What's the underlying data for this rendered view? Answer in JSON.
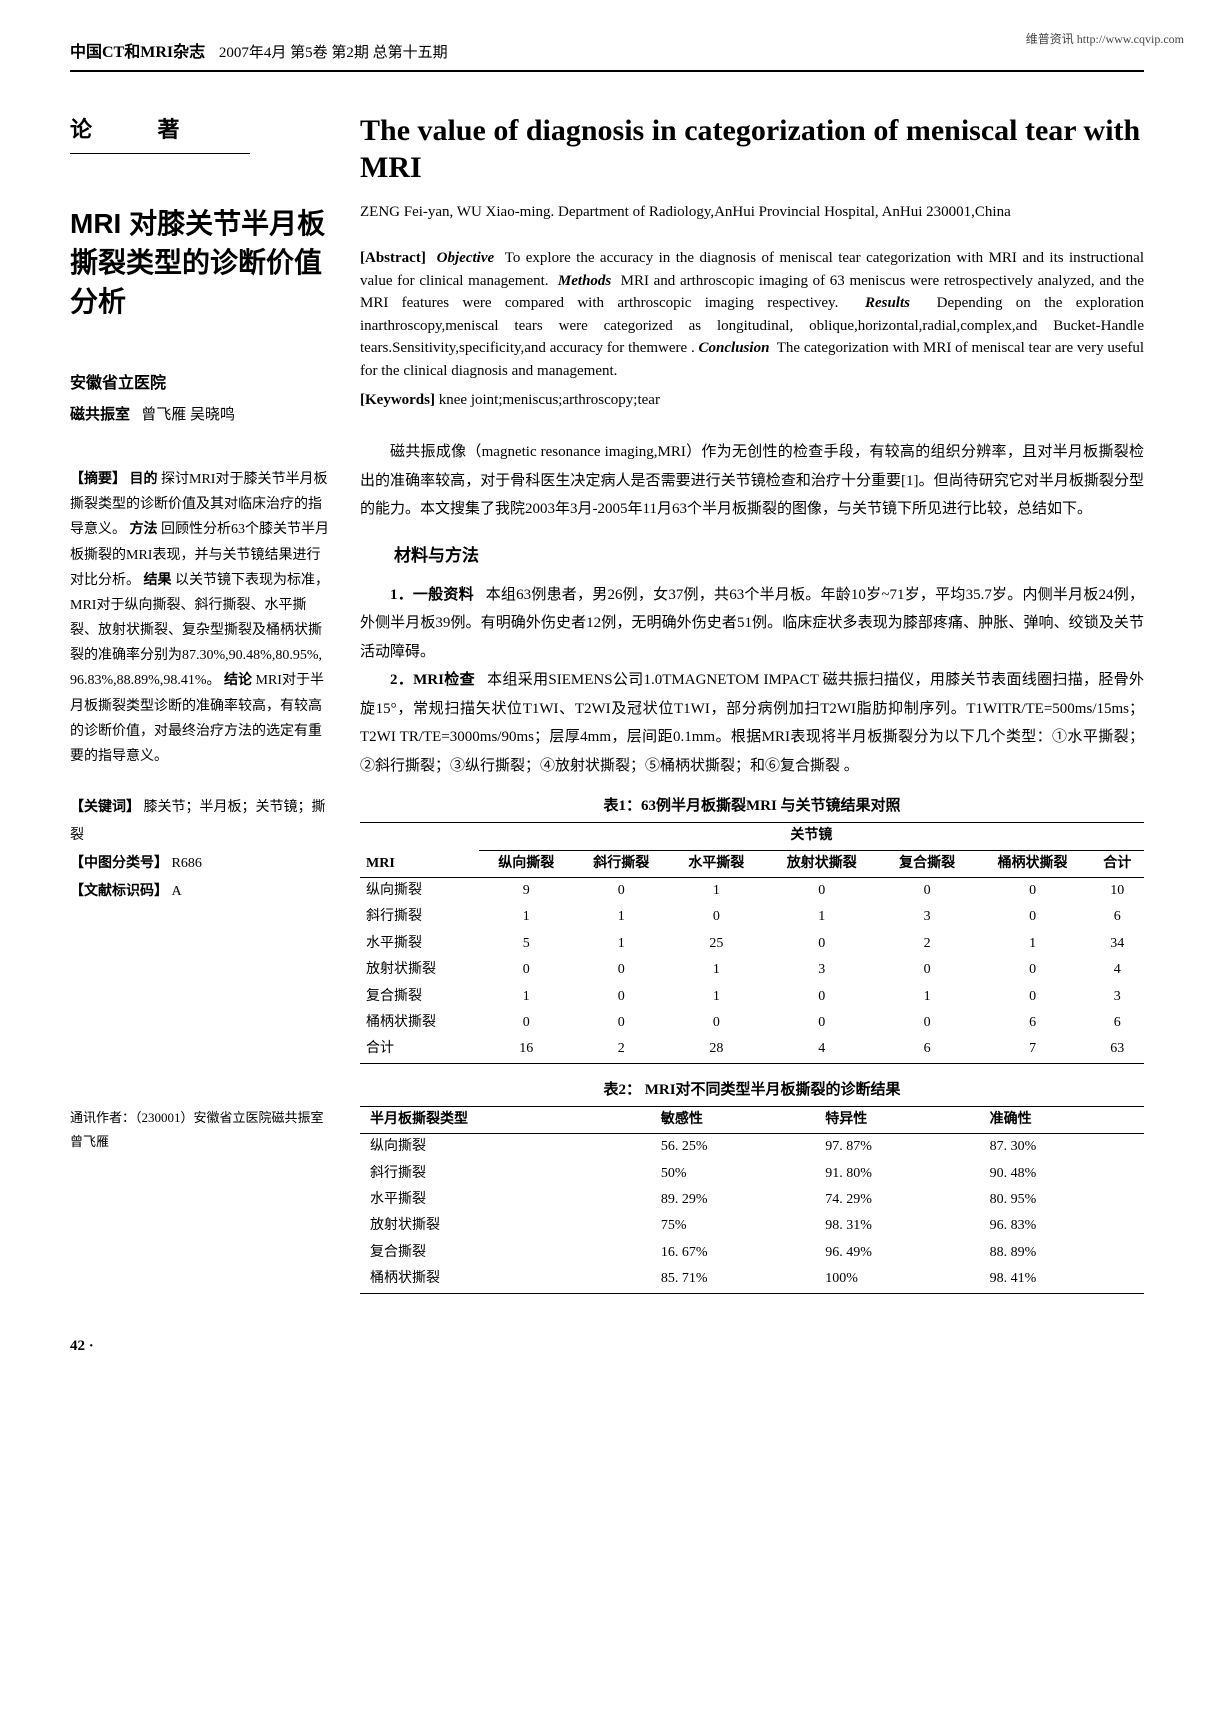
{
  "watermark": "维普资讯 http://www.cqvip.com",
  "journal": {
    "name": "中国CT和MRI杂志",
    "issue": "2007年4月 第5卷 第2期 总第十五期"
  },
  "sectionLabel": "论  著",
  "cnTitle": "MRI 对膝关节半月板撕裂类型的诊断价值分析",
  "affiliation": "安徽省立医院",
  "dept": "磁共振室",
  "authors": "曾飞雁  吴晓鸣",
  "cnAbstract": {
    "absHead": "【摘要】",
    "objHead": "目的",
    "objective": "探讨MRI对于膝关节半月板撕裂类型的诊断价值及其对临床治疗的指导意义。",
    "methHead": "方法",
    "methods": "回顾性分析63个膝关节半月板撕裂的MRI表现，并与关节镜结果进行对比分析。",
    "resHead": "结果",
    "results": "以关节镜下表现为标准，MRI对于纵向撕裂、斜行撕裂、水平撕裂、放射状撕裂、复杂型撕裂及桶柄状撕裂的准确率分别为87.30%,90.48%,80.95%, 96.83%,88.89%,98.41%。",
    "concHead": "结论",
    "conclusion": "MRI对于半月板撕裂类型诊断的准确率较高，有较高的诊断价值，对最终治疗方法的选定有重要的指导意义。"
  },
  "cnKeywords": {
    "kwHead": "【关键词】",
    "kw": "膝关节；半月板；关节镜；撕裂",
    "clsHead": "【中图分类号】",
    "cls": "R686",
    "codeHead": "【文献标识码】",
    "code": "A"
  },
  "corr": "通讯作者：（230001）安徽省立医院磁共振室  曾飞雁",
  "enTitle": "The value of diagnosis in categorization of meniscal tear with MRI",
  "enAuthors": "ZENG Fei-yan, WU Xiao-ming. Department of Radiology,AnHui Provincial Hospital, AnHui 230001,China",
  "enAbstract": {
    "absLabel": "[Abstract]",
    "objLabel": "Objective",
    "objective": "To explore the accuracy in the diagnosis of meniscal tear categorization with MRI and its instructional value for clinical management.",
    "methLabel": "Methods",
    "methods": "MRI and arthroscopic imaging of 63 meniscus were retrospectively analyzed, and the MRI features were compared with arthroscopic imaging respectivey.",
    "resLabel": "Results",
    "results": "Depending on the exploration inarthroscopy,meniscal tears were categorized as longitudinal, oblique,horizontal,radial,complex,and Bucket-Handle tears.Sensitivity,specificity,and accuracy for themwere .",
    "concLabel": "Conclusion",
    "conclusion": "The categorization with MRI of meniscal tear are very useful for the clinical diagnosis and management."
  },
  "enKeywords": {
    "label": "[Keywords]",
    "text": "knee joint;meniscus;arthroscopy;tear"
  },
  "intro": "磁共振成像（magnetic resonance imaging,MRI）作为无创性的检查手段，有较高的组织分辨率，且对半月板撕裂检出的准确率较高，对于骨科医生决定病人是否需要进行关节镜检查和治疗十分重要[1]。但尚待研究它对半月板撕裂分型的能力。本文搜集了我院2003年3月-2005年11月63个半月板撕裂的图像，与关节镜下所见进行比较，总结如下。",
  "h2_1": "材料与方法",
  "p1": {
    "lead": "1．一般资料",
    "text": "本组63例患者，男26例，女37例，共63个半月板。年龄10岁~71岁，平均35.7岁。内侧半月板24例，外侧半月板39例。有明确外伤史者12例，无明确外伤史者51例。临床症状多表现为膝部疼痛、肿胀、弹响、绞锁及关节活动障碍。"
  },
  "p2": {
    "lead": "2．MRI检查",
    "text": "本组采用SIEMENS公司1.0TMAGNETOM IMPACT 磁共振扫描仪，用膝关节表面线圈扫描，胫骨外旋15°，常规扫描矢状位T1WI、T2WI及冠状位T1WI，部分病例加扫T2WI脂肪抑制序列。T1WITR/TE=500ms/15ms；T2WI TR/TE=3000ms/90ms；层厚4mm，层间距0.1mm。根据MRI表现将半月板撕裂分为以下几个类型：①水平撕裂；②斜行撕裂；③纵行撕裂；④放射状撕裂；⑤桶柄状撕裂；和⑥复合撕裂 。"
  },
  "table1": {
    "caption": "表1：63例半月板撕裂MRI 与关节镜结果对照",
    "superHeader": "关节镜",
    "rowHeaderLabel": "MRI",
    "cols": [
      "纵向撕裂",
      "斜行撕裂",
      "水平撕裂",
      "放射状撕裂",
      "复合撕裂",
      "桶柄状撕裂",
      "合计"
    ],
    "rows": [
      {
        "label": "纵向撕裂",
        "cells": [
          "9",
          "0",
          "1",
          "0",
          "0",
          "0",
          "10"
        ]
      },
      {
        "label": "斜行撕裂",
        "cells": [
          "1",
          "1",
          "0",
          "1",
          "3",
          "0",
          "6"
        ]
      },
      {
        "label": "水平撕裂",
        "cells": [
          "5",
          "1",
          "25",
          "0",
          "2",
          "1",
          "34"
        ]
      },
      {
        "label": "放射状撕裂",
        "cells": [
          "0",
          "0",
          "1",
          "3",
          "0",
          "0",
          "4"
        ]
      },
      {
        "label": "复合撕裂",
        "cells": [
          "1",
          "0",
          "1",
          "0",
          "1",
          "0",
          "3"
        ]
      },
      {
        "label": "桶柄状撕裂",
        "cells": [
          "0",
          "0",
          "0",
          "0",
          "0",
          "6",
          "6"
        ]
      },
      {
        "label": "合计",
        "cells": [
          "16",
          "2",
          "28",
          "4",
          "6",
          "7",
          "63"
        ]
      }
    ]
  },
  "table2": {
    "caption": "表2： MRI对不同类型半月板撕裂的诊断结果",
    "cols": [
      "半月板撕裂类型",
      "敏感性",
      "特异性",
      "准确性"
    ],
    "rows": [
      {
        "cells": [
          "纵向撕裂",
          "56. 25%",
          "97. 87%",
          "87. 30%"
        ]
      },
      {
        "cells": [
          "斜行撕裂",
          "50%",
          "91. 80%",
          "90. 48%"
        ]
      },
      {
        "cells": [
          "水平撕裂",
          "89. 29%",
          "74. 29%",
          "80. 95%"
        ]
      },
      {
        "cells": [
          "放射状撕裂",
          "75%",
          "98. 31%",
          "96. 83%"
        ]
      },
      {
        "cells": [
          "复合撕裂",
          "16. 67%",
          "96. 49%",
          "88. 89%"
        ]
      },
      {
        "cells": [
          "桶柄状撕裂",
          "85. 71%",
          "100%",
          "98. 41%"
        ]
      }
    ]
  },
  "pageNum": "42 ·"
}
